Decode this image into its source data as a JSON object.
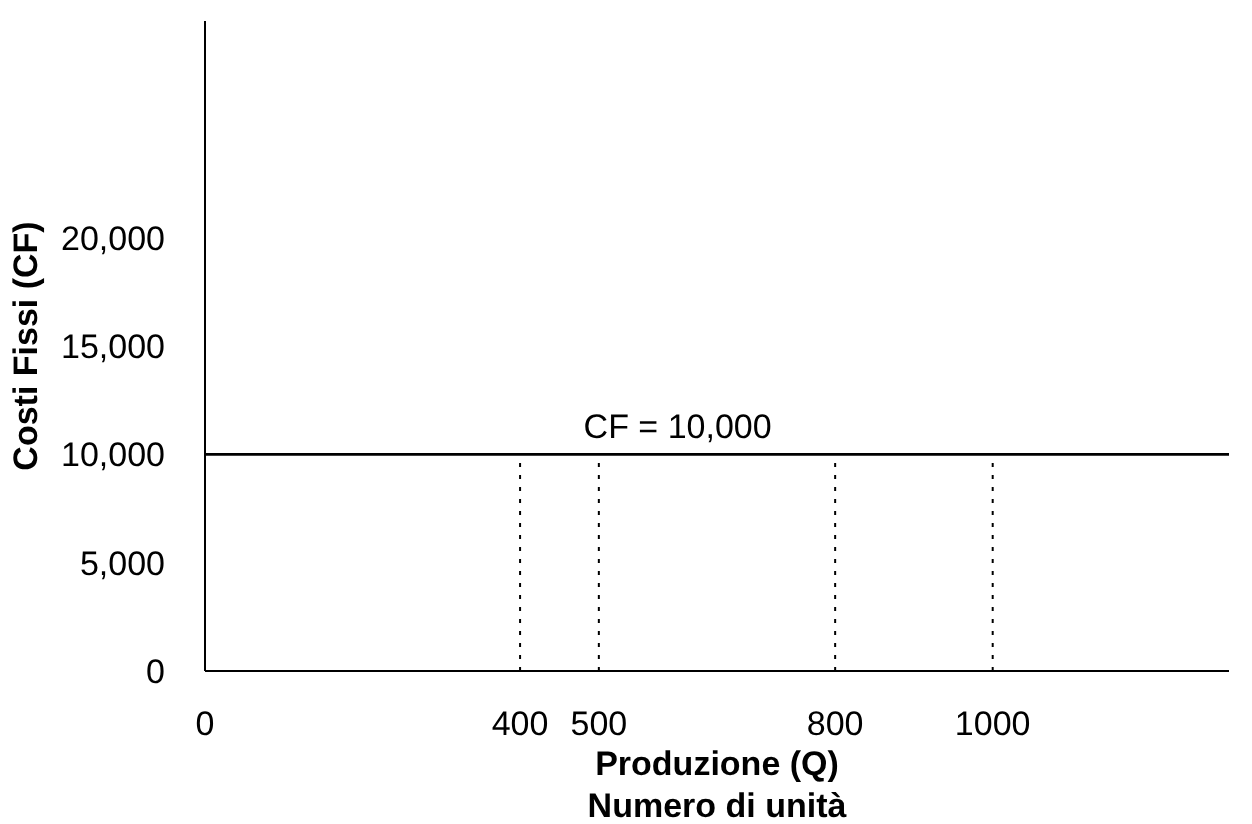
{
  "chart_data": {
    "type": "line",
    "xlabel": "Produzione (Q)\nNumero di unità",
    "ylabel": "Costi Fissi (CF)",
    "xlim": [
      0,
      1300
    ],
    "ylim": [
      0,
      30000
    ],
    "xticks": [
      0,
      400,
      500,
      800,
      1000
    ],
    "yticks": [
      0,
      {
        "value": 5000,
        "label": "5,000"
      },
      {
        "value": 10000,
        "label": "10,000"
      },
      {
        "value": 15000,
        "label": "15,000"
      },
      {
        "value": 20000,
        "label": "20,000"
      }
    ],
    "series": [
      {
        "color": "#000000",
        "x": [
          0,
          1300
        ],
        "values": [
          10000,
          10000
        ],
        "line_style": "solid"
      },
      {
        "color": "#000000",
        "x": [
          400,
          400
        ],
        "values": [
          0,
          10000
        ],
        "line_style": "dotted"
      },
      {
        "color": "#000000",
        "x": [
          500,
          500
        ],
        "values": [
          0,
          10000
        ],
        "line_style": "dotted"
      },
      {
        "color": "#000000",
        "x": [
          800,
          800
        ],
        "values": [
          0,
          10000
        ],
        "line_style": "dotted"
      },
      {
        "color": "#000000",
        "x": [
          1000,
          1000
        ],
        "values": [
          0,
          10000
        ],
        "line_style": "dotted"
      }
    ],
    "annotations": [
      {
        "text": "CF = 10,000",
        "x": 600,
        "y": 10000
      }
    ],
    "grid": false,
    "marker": "none"
  }
}
